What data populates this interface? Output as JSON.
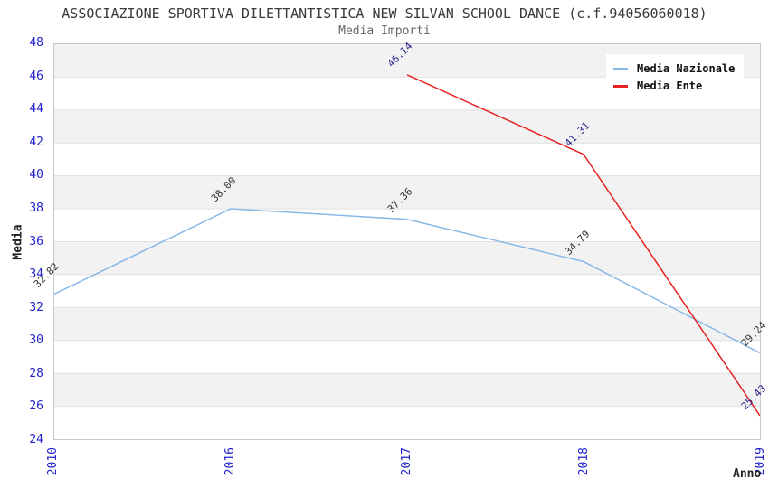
{
  "header": {
    "title": "ASSOCIAZIONE SPORTIVA DILETTANTISTICA NEW SILVAN SCHOOL DANCE (c.f.94056060018)",
    "subtitle": "Media Importi"
  },
  "colors": {
    "tick_text": "#2222cc",
    "band_fill": "#f2f2f2",
    "grid_line": "#e0e0e0",
    "plot_border": "#c9c9c9",
    "nazionale_line": "#88b8e8",
    "ente_line": "#e62222",
    "nazionale_label_text": "#333333",
    "ente_label_text": "#24248e"
  },
  "chart_data": {
    "type": "line",
    "title": "ASSOCIAZIONE SPORTIVA DILETTANTISTICA NEW SILVAN SCHOOL DANCE (c.f.94056060018)",
    "subtitle": "Media Importi",
    "categories": [
      "2010",
      "2016",
      "2017",
      "2018",
      "2019"
    ],
    "series": [
      {
        "name": "Media Nazionale",
        "color": "#88b8e8",
        "label_color": "#333333",
        "values": [
          32.82,
          38.0,
          37.36,
          34.79,
          29.24
        ]
      },
      {
        "name": "Media Ente",
        "color": "#e62222",
        "label_color": "#24248e",
        "values": [
          null,
          null,
          46.14,
          41.31,
          25.43
        ]
      }
    ],
    "xlabel": "Anno",
    "ylabel": "Media",
    "ylim": [
      24,
      48
    ],
    "ytick_step": 2,
    "grid": "horizontal-bands",
    "legend_position": "top-right",
    "point_labels": "values shown rotated 45deg at each point, 2 decimals"
  }
}
